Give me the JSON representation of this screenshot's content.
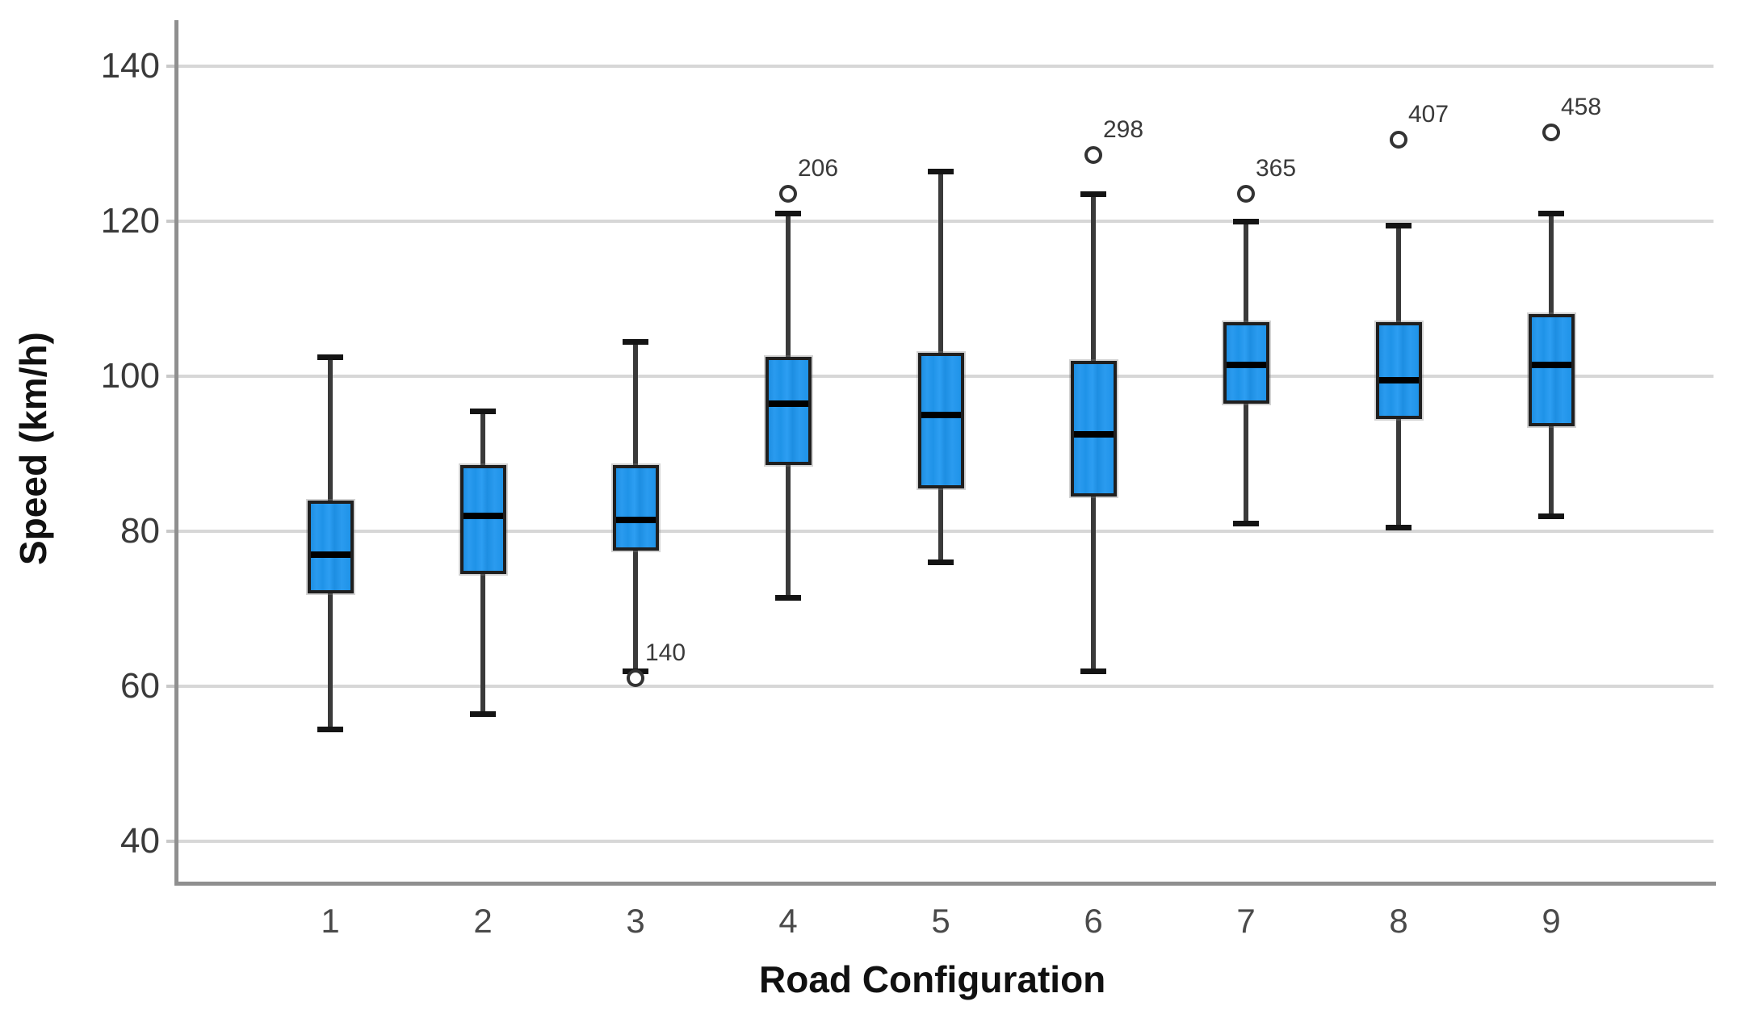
{
  "chart_data": {
    "type": "boxplot",
    "xlabel": "Road Configuration",
    "ylabel": "Speed (km/h)",
    "categories": [
      "1",
      "2",
      "3",
      "4",
      "5",
      "6",
      "7",
      "8",
      "9"
    ],
    "y_ticks": [
      "40",
      "60",
      "80",
      "100",
      "120",
      "140"
    ],
    "y_tick_values": [
      40,
      60,
      80,
      100,
      120,
      140
    ],
    "ylim": [
      34,
      146
    ],
    "grid": "horizontal-gridlines-on",
    "legend": "none",
    "series": [
      {
        "category": "1",
        "min": 54.5,
        "q1": 72,
        "median": 77,
        "q3": 84,
        "max": 102.5,
        "outliers": []
      },
      {
        "category": "2",
        "min": 56.5,
        "q1": 74.5,
        "median": 82,
        "q3": 88.5,
        "max": 95.5,
        "outliers": []
      },
      {
        "category": "3",
        "min": 62,
        "q1": 77.5,
        "median": 81.5,
        "q3": 88.5,
        "max": 104.5,
        "outliers": [
          {
            "value": 61,
            "label": "140"
          }
        ]
      },
      {
        "category": "4",
        "min": 71.5,
        "q1": 88.5,
        "median": 96.5,
        "q3": 102.5,
        "max": 121,
        "outliers": [
          {
            "value": 123.5,
            "label": "206"
          }
        ]
      },
      {
        "category": "5",
        "min": 76,
        "q1": 85.5,
        "median": 95,
        "q3": 103,
        "max": 126.5,
        "outliers": []
      },
      {
        "category": "6",
        "min": 62,
        "q1": 84.5,
        "median": 92.5,
        "q3": 102,
        "max": 123.5,
        "outliers": [
          {
            "value": 128.5,
            "label": "298"
          }
        ]
      },
      {
        "category": "7",
        "min": 81,
        "q1": 96.5,
        "median": 101.5,
        "q3": 107,
        "max": 120,
        "outliers": [
          {
            "value": 123.5,
            "label": "365"
          }
        ]
      },
      {
        "category": "8",
        "min": 80.5,
        "q1": 94.5,
        "median": 99.5,
        "q3": 107,
        "max": 119.5,
        "outliers": [
          {
            "value": 130.5,
            "label": "407"
          }
        ]
      },
      {
        "category": "9",
        "min": 82,
        "q1": 93.5,
        "median": 101.5,
        "q3": 108,
        "max": 121,
        "outliers": [
          {
            "value": 131.5,
            "label": "458"
          }
        ]
      }
    ],
    "colors": {
      "box_fill": "#1F93E8",
      "box_border": "#1F1F1F",
      "median_line": "#000000",
      "whisker": "#3A3A3A",
      "cap": "#141414",
      "gridline": "#D7D7D7",
      "axis_line": "#8F8F8F",
      "outlier_stroke": "#333333",
      "tick_text": "#3A3A3A",
      "axis_title_text": "#111111",
      "background": "#FFFFFF"
    }
  }
}
